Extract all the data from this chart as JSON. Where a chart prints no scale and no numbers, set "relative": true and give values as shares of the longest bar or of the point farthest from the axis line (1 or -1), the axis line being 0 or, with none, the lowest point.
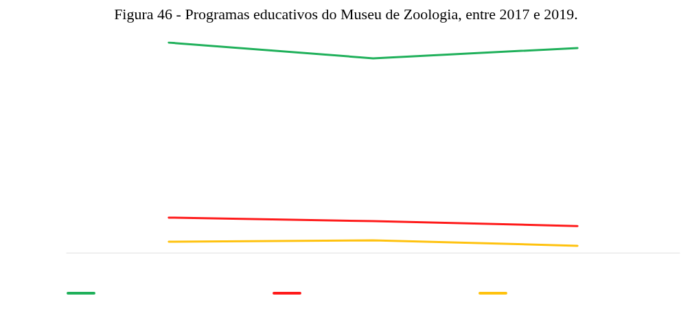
{
  "chart_data": {
    "type": "line",
    "title": "Figura 46 - Programas educativos do Museu de Zoologia, entre 2017 e 2019.",
    "relative": true,
    "categories": [
      null,
      null,
      null
    ],
    "marker": "none",
    "line_style": "solid",
    "grid": false,
    "series": [
      {
        "color": "#1fb05a",
        "values": [
          1,
          0.925,
          0.974
        ]
      },
      {
        "color": "#ff1a1a",
        "values": [
          0.167,
          0.15,
          0.127
        ]
      },
      {
        "color": "#ffc20e",
        "values": [
          0.052,
          0.059,
          0.033
        ]
      }
    ]
  }
}
